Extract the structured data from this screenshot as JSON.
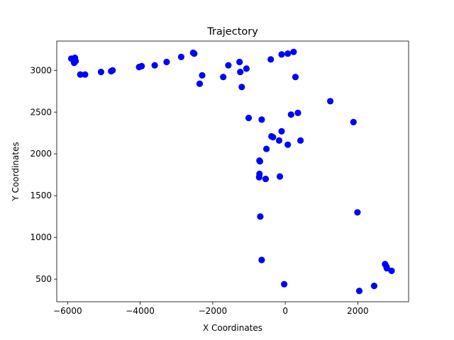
{
  "chart_data": {
    "type": "scatter",
    "title": "Trajectory",
    "xlabel": "X Coordinates",
    "ylabel": "Y Coordinates",
    "xlim": [
      -6300,
      3400
    ],
    "ylim": [
      230,
      3350
    ],
    "xticks": [
      -6000,
      -4000,
      -2000,
      0,
      2000
    ],
    "xtick_labels": [
      "−6000",
      "−4000",
      "−2000",
      "0",
      "2000"
    ],
    "yticks": [
      500,
      1000,
      1500,
      2000,
      2500,
      3000
    ],
    "ytick_labels": [
      "500",
      "1000",
      "1500",
      "2000",
      "2500",
      "3000"
    ],
    "grid": false,
    "legend": "none",
    "marker_color": "#0000ff",
    "x": [
      -5900,
      -5800,
      -5780,
      -5820,
      -5650,
      -5520,
      -5080,
      -4800,
      -4760,
      -4030,
      -3960,
      -3600,
      -3270,
      -2870,
      -2540,
      -2510,
      -2290,
      -2360,
      -1710,
      -1570,
      -1260,
      -1240,
      -1070,
      -1200,
      -400,
      -100,
      70,
      230,
      280,
      1240,
      -1010,
      -650,
      160,
      350,
      1880,
      -380,
      -340,
      -100,
      -170,
      420,
      70,
      -520,
      -700,
      -710,
      -710,
      -720,
      -540,
      -150,
      -690,
      1990,
      -650,
      -30,
      2040,
      2450,
      2750,
      2790,
      2800,
      2930
    ],
    "y": [
      3140,
      3150,
      3110,
      3090,
      2950,
      2950,
      2980,
      2990,
      3000,
      3040,
      3050,
      3060,
      3100,
      3160,
      3210,
      3200,
      2940,
      2840,
      2920,
      3060,
      3100,
      2980,
      3020,
      2800,
      3130,
      3190,
      3200,
      3220,
      2920,
      2630,
      2430,
      2410,
      2470,
      2490,
      2380,
      2210,
      2200,
      2270,
      2160,
      2160,
      2110,
      2060,
      1910,
      1920,
      1760,
      1720,
      1700,
      1730,
      1250,
      1300,
      730,
      440,
      360,
      420,
      680,
      650,
      630,
      600
    ]
  }
}
